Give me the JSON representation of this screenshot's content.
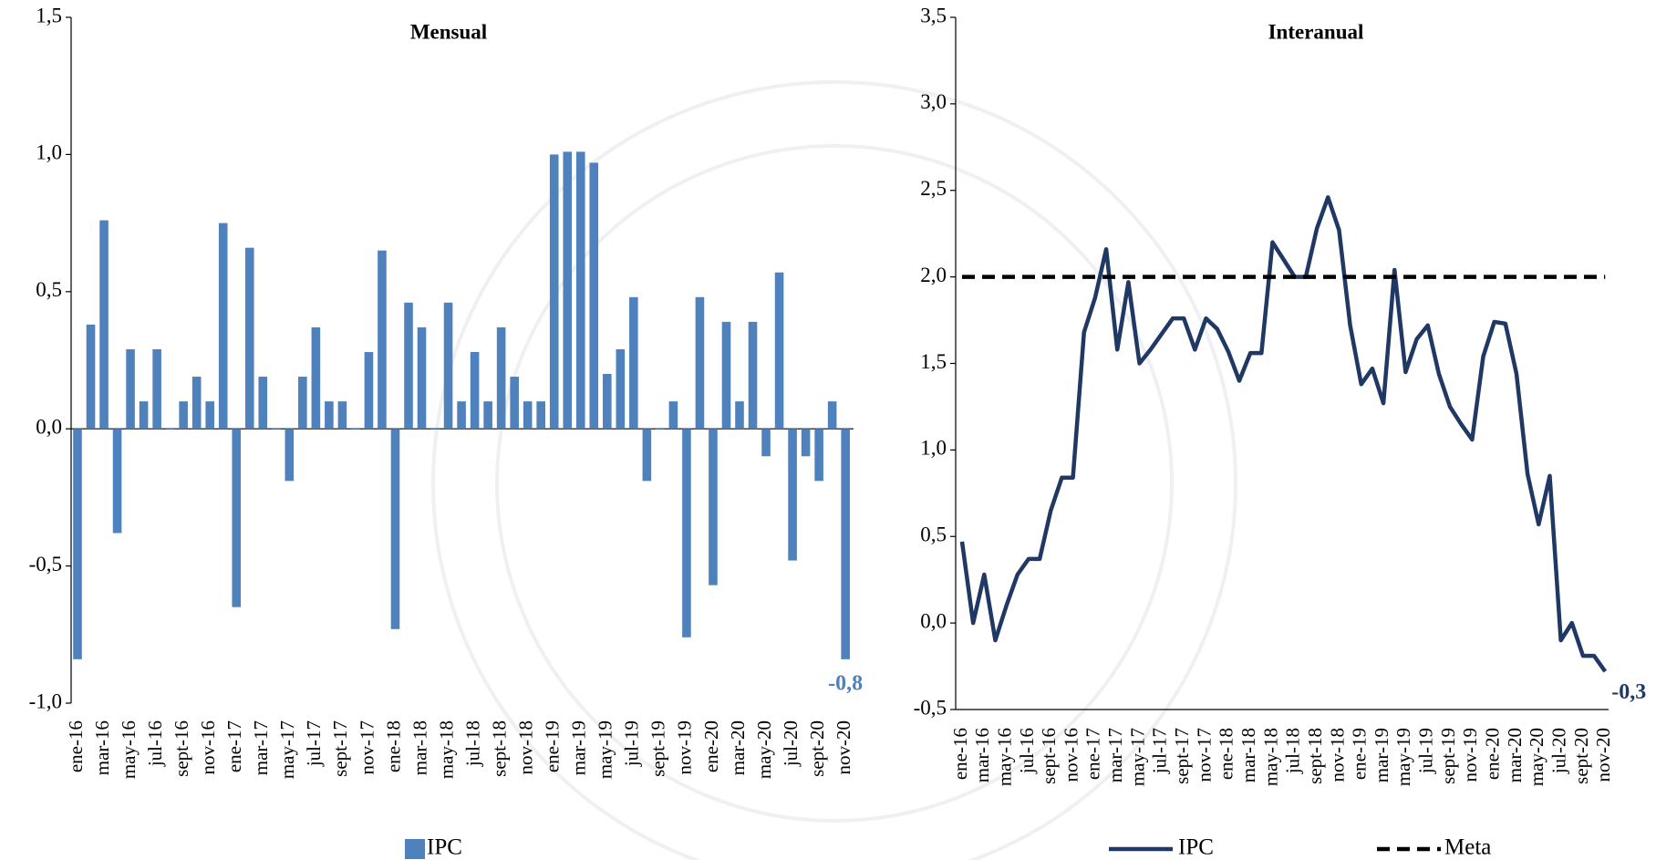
{
  "chart_data": [
    {
      "type": "bar",
      "title": "Mensual",
      "categories": [
        "ene-16",
        null,
        "mar-16",
        null,
        "may-16",
        null,
        "jul-16",
        null,
        "sept-16",
        null,
        "nov-16",
        null,
        "ene-17",
        null,
        "mar-17",
        null,
        "may-17",
        null,
        "jul-17",
        null,
        "sept-17",
        null,
        "nov-17",
        null,
        "ene-18",
        null,
        "mar-18",
        null,
        "may-18",
        null,
        "jul-18",
        null,
        "sept-18",
        null,
        "nov-18",
        null,
        "ene-19",
        null,
        "mar-19",
        null,
        "may-19",
        null,
        "jul-19",
        null,
        "sept-19",
        null,
        "nov-19",
        null,
        "ene-20",
        null,
        "mar-20",
        null,
        "may-20",
        null,
        "jul-20",
        null,
        "sept-20",
        null,
        "nov-20"
      ],
      "series": [
        {
          "name": "IPC",
          "color": "#4f81bd",
          "values": [
            -0.84,
            0.38,
            0.76,
            -0.38,
            0.29,
            0.1,
            0.29,
            0,
            0.1,
            0.19,
            0.1,
            0.75,
            -0.65,
            0.66,
            0.19,
            0,
            -0.19,
            0.19,
            0.37,
            0.1,
            0.1,
            0,
            0.28,
            0.65,
            -0.73,
            0.46,
            0.37,
            0,
            0.46,
            0.1,
            0.28,
            0.1,
            0.37,
            0.19,
            0.1,
            0.1,
            1.0,
            1.01,
            1.01,
            0.97,
            0.2,
            0.29,
            0.48,
            -0.19,
            0,
            0.1,
            -0.76,
            0.48,
            -0.57,
            0.39,
            0.1,
            0.39,
            -0.1,
            0.57,
            -0.48,
            -0.1,
            -0.19,
            0.1,
            -0.84
          ],
          "value_labels": [
            null,
            null,
            null,
            null,
            null,
            null,
            null,
            null,
            null,
            null,
            null,
            null,
            null,
            null,
            null,
            null,
            null,
            null,
            null,
            null,
            null,
            null,
            null,
            null,
            null,
            null,
            null,
            null,
            null,
            null,
            null,
            null,
            null,
            null,
            null,
            null,
            null,
            null,
            null,
            null,
            null,
            null,
            null,
            null,
            null,
            null,
            null,
            null,
            null,
            null,
            null,
            null,
            null,
            null,
            null,
            null,
            null,
            null,
            "-0,8"
          ]
        }
      ],
      "ylim": [
        -1.0,
        1.5
      ],
      "yticks": [
        {
          "value": -1.0,
          "label": "-1,0"
        },
        {
          "value": -0.5,
          "label": "-0,5"
        },
        {
          "value": 0,
          "label": "0,0"
        },
        {
          "value": 0.5,
          "label": "0,5"
        },
        {
          "value": 1.0,
          "label": "1,0"
        },
        {
          "value": 1.5,
          "label": "1,5"
        }
      ],
      "grid": false,
      "legend": "bottom"
    },
    {
      "type": "line",
      "title": "Interanual",
      "categories": [
        "ene-16",
        null,
        "mar-16",
        null,
        "may-16",
        null,
        "jul-16",
        null,
        "sept-16",
        null,
        "nov-16",
        null,
        "ene-17",
        null,
        "mar-17",
        null,
        "may-17",
        null,
        "jul-17",
        null,
        "sept-17",
        null,
        "nov-17",
        null,
        "ene-18",
        null,
        "mar-18",
        null,
        "may-18",
        null,
        "jul-18",
        null,
        "sept-18",
        null,
        "nov-18",
        null,
        "ene-19",
        null,
        "mar-19",
        null,
        "may-19",
        null,
        "jul-19",
        null,
        "sept-19",
        null,
        "nov-19",
        null,
        "ene-20",
        null,
        "mar-20",
        null,
        "may-20",
        null,
        "jul-20",
        null,
        "sept-20",
        null,
        "nov-20"
      ],
      "series": [
        {
          "name": "IPC",
          "color": "#1f3864",
          "linestyle": "solid",
          "values": [
            0.47,
            0.0,
            0.28,
            -0.1,
            0.1,
            0.28,
            0.37,
            0.37,
            0.65,
            0.84,
            0.84,
            1.68,
            1.88,
            2.16,
            1.58,
            1.97,
            1.5,
            1.58,
            1.67,
            1.76,
            1.76,
            1.58,
            1.76,
            1.7,
            1.57,
            1.4,
            1.56,
            1.56,
            2.2,
            2.1,
            2.0,
            2.0,
            2.28,
            2.46,
            2.27,
            1.72,
            1.38,
            1.47,
            1.27,
            2.04,
            1.45,
            1.64,
            1.72,
            1.44,
            1.25,
            1.15,
            1.06,
            1.54,
            1.74,
            1.73,
            1.44,
            0.86,
            0.57,
            0.85,
            -0.1,
            0.0,
            -0.19,
            -0.19,
            -0.28
          ],
          "value_labels": [
            null,
            null,
            null,
            null,
            null,
            null,
            null,
            null,
            null,
            null,
            null,
            null,
            null,
            null,
            null,
            null,
            null,
            null,
            null,
            null,
            null,
            null,
            null,
            null,
            null,
            null,
            null,
            null,
            null,
            null,
            null,
            null,
            null,
            null,
            null,
            null,
            null,
            null,
            null,
            null,
            null,
            null,
            null,
            null,
            null,
            null,
            null,
            null,
            null,
            null,
            null,
            null,
            null,
            null,
            null,
            null,
            null,
            null,
            "-0,3"
          ]
        },
        {
          "name": "Meta",
          "color": "#000000",
          "linestyle": "dashed",
          "values": [
            2,
            2,
            2,
            2,
            2,
            2,
            2,
            2,
            2,
            2,
            2,
            2,
            2,
            2,
            2,
            2,
            2,
            2,
            2,
            2,
            2,
            2,
            2,
            2,
            2,
            2,
            2,
            2,
            2,
            2,
            2,
            2,
            2,
            2,
            2,
            2,
            2,
            2,
            2,
            2,
            2,
            2,
            2,
            2,
            2,
            2,
            2,
            2,
            2,
            2,
            2,
            2,
            2,
            2,
            2,
            2,
            2,
            2,
            2
          ]
        }
      ],
      "ylim": [
        -0.5,
        3.5
      ],
      "yticks": [
        {
          "value": -0.5,
          "label": "-0,5"
        },
        {
          "value": 0,
          "label": "0,0"
        },
        {
          "value": 0.5,
          "label": "0,5"
        },
        {
          "value": 1.0,
          "label": "1,0"
        },
        {
          "value": 1.5,
          "label": "1,5"
        },
        {
          "value": 2.0,
          "label": "2,0"
        },
        {
          "value": 2.5,
          "label": "2,5"
        },
        {
          "value": 3.0,
          "label": "3,0"
        },
        {
          "value": 3.5,
          "label": "3,5"
        }
      ],
      "grid": false,
      "legend": "bottom"
    }
  ]
}
